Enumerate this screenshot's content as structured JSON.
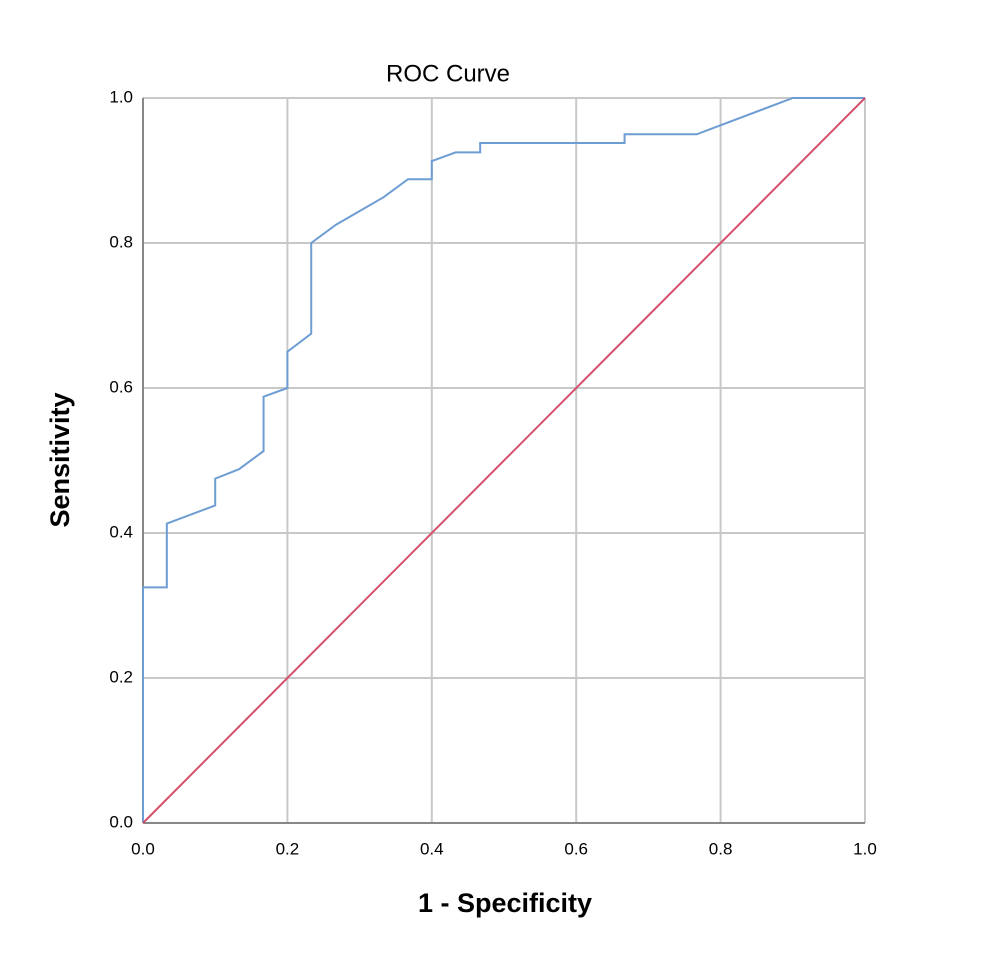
{
  "chart_data": {
    "type": "line",
    "title": "ROC Curve",
    "x_label": "1 - Specificity",
    "y_label": "Sensitivity",
    "series": [
      {
        "color": "#6d9dd3",
        "x": [
          0,
          0,
          0.033,
          0.033,
          0.1,
          0.1,
          0.133,
          0.167,
          0.167,
          0.2,
          0.2,
          0.233,
          0.233,
          0.267,
          0.333,
          0.367,
          0.4,
          0.4,
          0.433,
          0.467,
          0.467,
          0.667,
          0.667,
          0.767,
          0.9,
          1.0
        ],
        "values": [
          0,
          0.325,
          0.325,
          0.413,
          0.438,
          0.475,
          0.488,
          0.513,
          0.588,
          0.6,
          0.65,
          0.675,
          0.8,
          0.825,
          0.863,
          0.888,
          0.888,
          0.913,
          0.925,
          0.925,
          0.938,
          0.938,
          0.95,
          0.95,
          1.0,
          1.0
        ]
      },
      {
        "color": "#d4506e",
        "x": [
          0,
          1.0
        ],
        "values": [
          0,
          1.0
        ]
      }
    ],
    "xlim": [
      0,
      1.0
    ],
    "ylim": [
      0,
      1.0
    ],
    "xticks": [
      {
        "value": 0,
        "label": "0.0"
      },
      0.2,
      0.4,
      0.6,
      0.8,
      {
        "value": 1.0,
        "label": "1.0"
      }
    ],
    "yticks": [
      {
        "value": 0,
        "label": "0.0"
      },
      0.2,
      0.4,
      0.6,
      0.8,
      {
        "value": 1.0,
        "label": "1.0"
      }
    ],
    "grid": true
  }
}
